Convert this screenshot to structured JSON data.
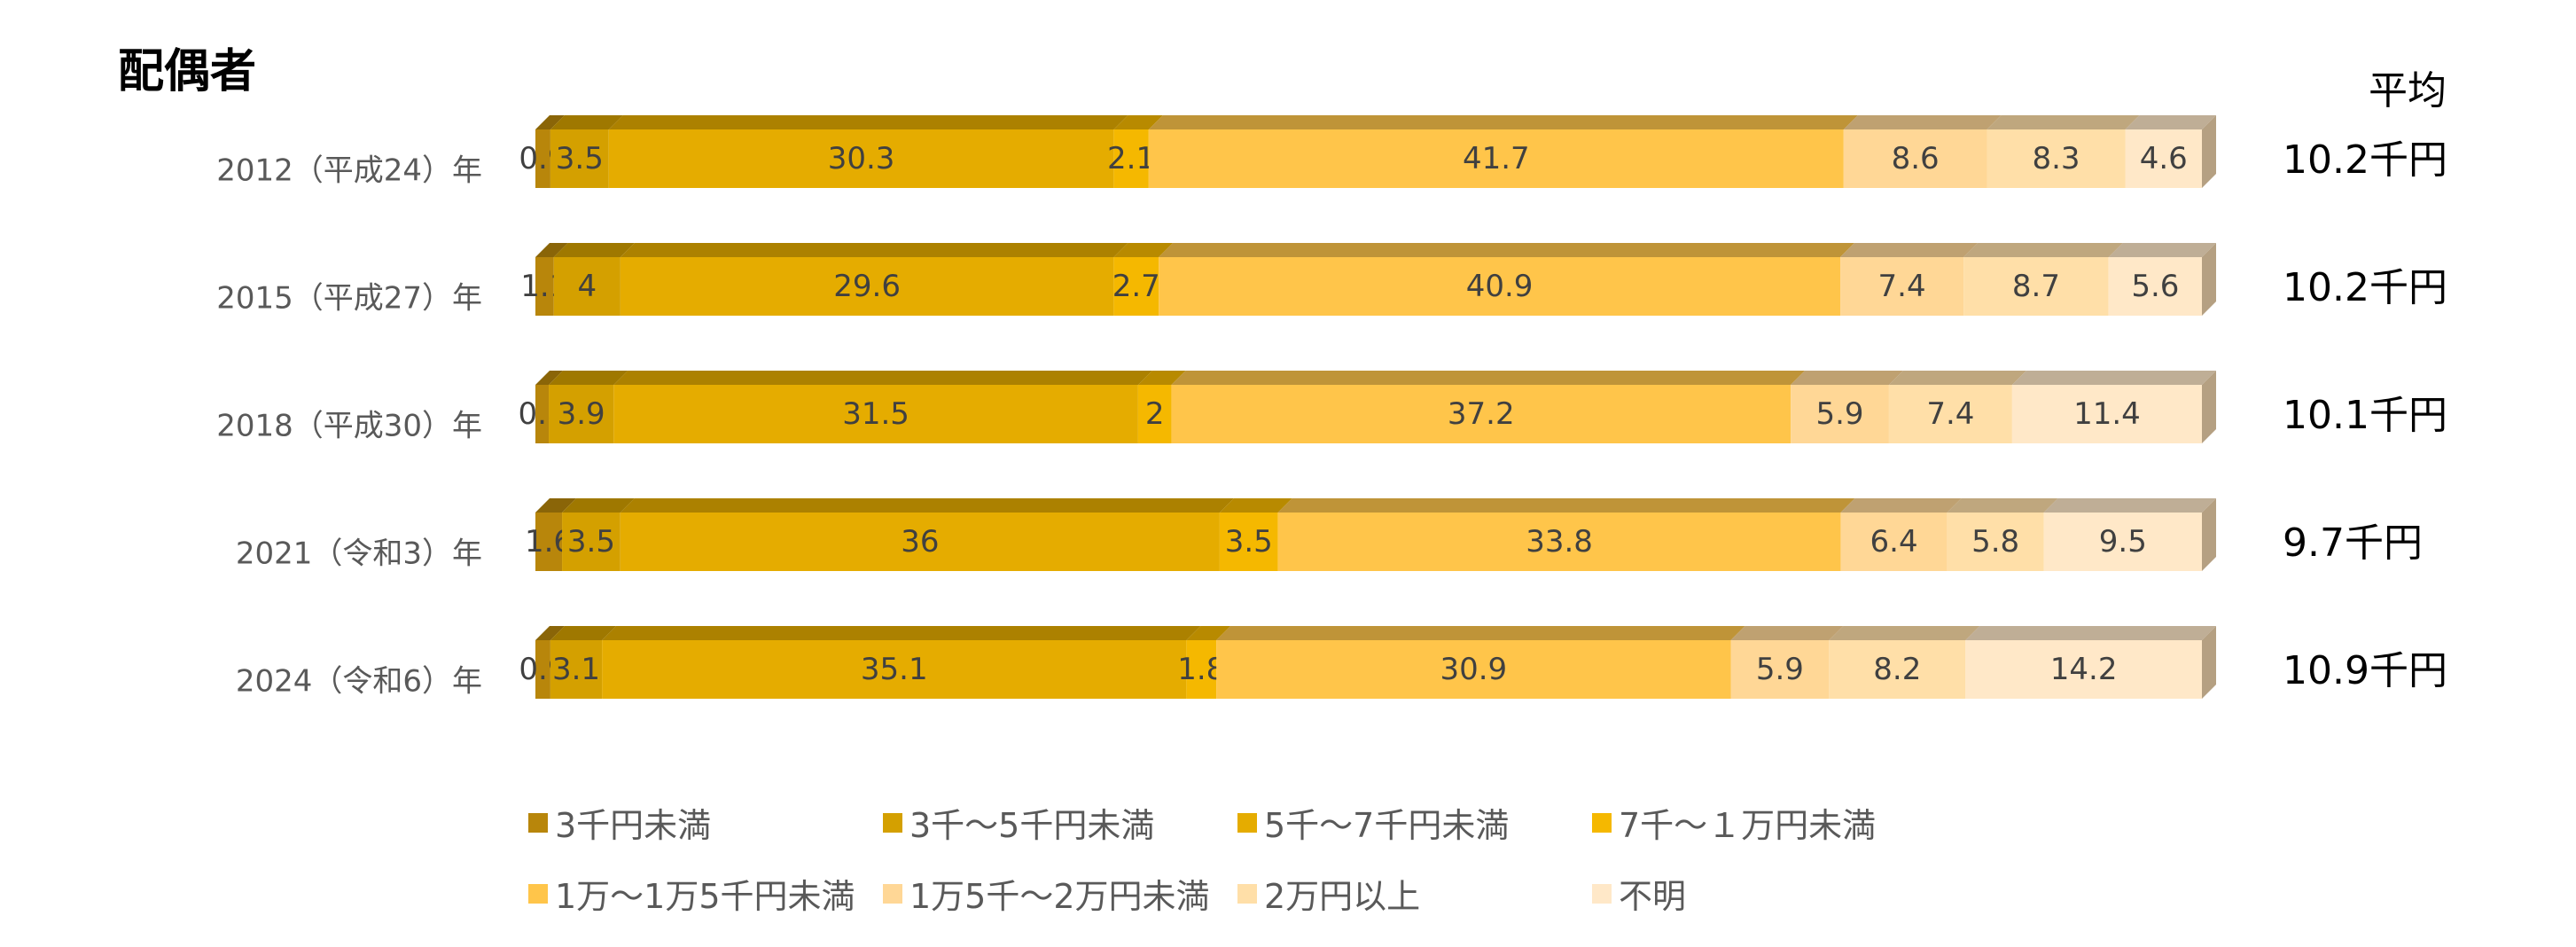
{
  "title": "配偶者",
  "average_header": "平均",
  "chart_data": {
    "type": "bar",
    "orientation": "horizontal",
    "stacked": "100%",
    "categories": [
      "2012（平成24）年",
      "2015（平成27）年",
      "2018（平成30）年",
      "2021（令和3）年",
      "2024（令和6）年"
    ],
    "series": [
      {
        "name": "3千円未満",
        "color": "#b8860b",
        "values": [
          0.9,
          1.1,
          0.8,
          1.6,
          0.9
        ]
      },
      {
        "name": "3千～5千円未満",
        "color": "#d4a000",
        "values": [
          3.5,
          4,
          3.9,
          3.5,
          3.1
        ]
      },
      {
        "name": "5千～7千円未満",
        "color": "#e5ac00",
        "values": [
          30.3,
          29.6,
          31.5,
          36,
          35.1
        ]
      },
      {
        "name": "7千～１万円未満",
        "color": "#f5b800",
        "values": [
          2.1,
          2.7,
          2,
          3.5,
          1.8
        ]
      },
      {
        "name": "1万～1万5千円未満",
        "color": "#ffc54a",
        "values": [
          41.7,
          40.9,
          37.2,
          33.8,
          30.9
        ]
      },
      {
        "name": "1万5千～2万円未満",
        "color": "#ffd796",
        "values": [
          8.6,
          7.4,
          5.9,
          6.4,
          5.9
        ]
      },
      {
        "name": "2万円以上",
        "color": "#ffdfa8",
        "values": [
          8.3,
          8.7,
          7.4,
          5.8,
          8.2
        ]
      },
      {
        "name": "不明",
        "color": "#ffe8c8",
        "values": [
          4.6,
          5.6,
          11.4,
          9.5,
          14.2
        ]
      }
    ],
    "averages": [
      "10.2千円",
      "10.2千円",
      "10.1千円",
      "9.7千円",
      "10.9千円"
    ],
    "xlim": [
      0,
      100
    ],
    "legend_position": "bottom"
  }
}
